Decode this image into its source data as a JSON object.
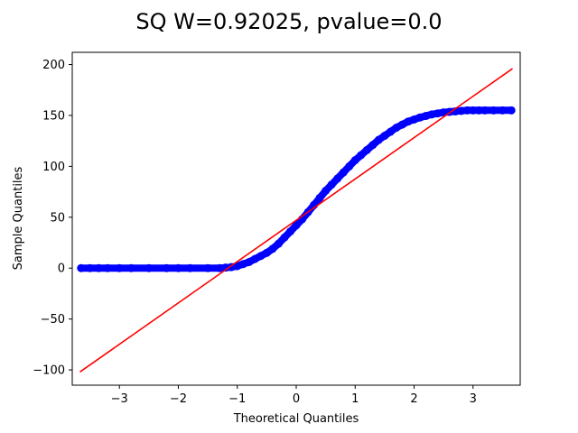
{
  "chart_data": {
    "type": "scatter",
    "title": "SQ W=0.92025, pvalue=0.0",
    "xlabel": "Theoretical Quantiles",
    "ylabel": "Sample Quantiles",
    "xlim": [
      -3.8,
      3.8
    ],
    "ylim": [
      -115,
      212
    ],
    "x_ticks": [
      -3,
      -2,
      -1,
      0,
      1,
      2,
      3
    ],
    "y_ticks": [
      -100,
      -50,
      0,
      50,
      100,
      150,
      200
    ],
    "x_tick_labels": [
      "−3",
      "−2",
      "−1",
      "0",
      "1",
      "2",
      "3"
    ],
    "y_tick_labels": [
      "−100",
      "−50",
      "0",
      "50",
      "100",
      "150",
      "200"
    ],
    "grid": false,
    "colors": {
      "points": "#0000ff",
      "line": "#ff0000",
      "axes": "#000000"
    },
    "series": [
      {
        "type": "scatter",
        "x": [
          -3.65,
          -3.5,
          -3.35,
          -3.2,
          -3.0,
          -2.8,
          -2.5,
          -2.2,
          -2.0,
          -1.8,
          -1.5,
          -1.3,
          -1.2,
          -1.1,
          -1.0,
          -0.9,
          -0.8,
          -0.7,
          -0.6,
          -0.5,
          -0.4,
          -0.3,
          -0.2,
          -0.1,
          0.0,
          0.1,
          0.2,
          0.3,
          0.4,
          0.5,
          0.6,
          0.7,
          0.8,
          0.9,
          1.0,
          1.1,
          1.2,
          1.3,
          1.4,
          1.5,
          1.6,
          1.7,
          1.8,
          1.9,
          2.0,
          2.1,
          2.2,
          2.3,
          2.4,
          2.5,
          2.6,
          2.7,
          2.8,
          2.9,
          3.0,
          3.1,
          3.2,
          3.35,
          3.5,
          3.65
        ],
        "y": [
          0,
          0,
          0,
          0,
          0,
          0,
          0,
          0,
          0,
          0,
          0,
          0,
          0.5,
          1,
          2,
          4,
          6,
          9,
          12,
          15,
          19,
          24,
          30,
          36,
          42,
          48,
          55,
          62,
          69,
          76,
          82,
          88,
          94,
          100,
          106,
          111,
          116,
          121,
          126,
          130,
          134,
          138,
          141,
          144,
          146,
          148,
          149.5,
          151,
          152,
          153,
          153.5,
          154,
          154.5,
          155,
          155,
          155,
          155,
          155,
          155,
          155
        ]
      },
      {
        "type": "line",
        "x": [
          -3.67,
          3.67
        ],
        "y": [
          -102,
          196
        ]
      }
    ]
  }
}
